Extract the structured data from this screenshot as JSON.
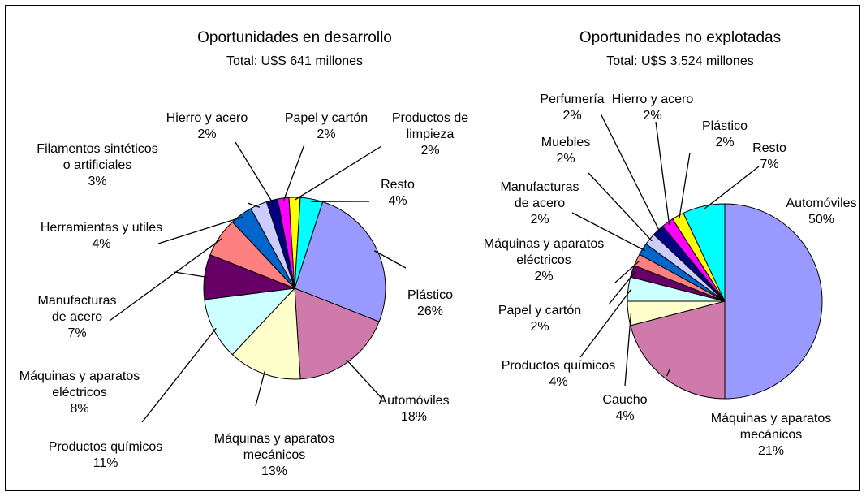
{
  "chart_data": [
    {
      "type": "pie",
      "title": "Oportunidades en desarrollo",
      "subtitle": "Total: U$S 641 millones",
      "categories": [
        "Plástico",
        "Automóviles",
        "Máquinas y aparatos\nmecánicos",
        "Productos químicos",
        "Máquinas y aparatos\neléctricos",
        "Manufacturas\nde acero",
        "Herramientas y utiles",
        "Filamentos sintéticos\no artificiales",
        "Hierro y acero",
        "Papel y cartón",
        "Productos de\nlimpieza",
        "Resto"
      ],
      "values": [
        26,
        18,
        13,
        11,
        8,
        7,
        4,
        3,
        2,
        2,
        2,
        4
      ],
      "value_labels": [
        "26%",
        "18%",
        "13%",
        "11%",
        "8%",
        "7%",
        "4%",
        "3%",
        "2%",
        "2%",
        "2%",
        "4%"
      ],
      "colors": [
        "#9999ff",
        "#d07aac",
        "#ffffcc",
        "#ccffff",
        "#660066",
        "#ff8080",
        "#0066cc",
        "#ccccff",
        "#000080",
        "#ff00ff",
        "#ffff00",
        "#00ffff"
      ]
    },
    {
      "type": "pie",
      "title": "Oportunidades no explotadas",
      "subtitle": "Total: U$S 3.524 millones",
      "categories": [
        "Automóviles",
        "Máquinas y aparatos\nmecánicos",
        "Caucho",
        "Productos químicos",
        "Papel y cartón",
        "Máquinas y aparatos\neléctricos",
        "Manufacturas\nde acero",
        "Muebles",
        "Perfumería",
        "Hierro y acero",
        "Plástico",
        "Resto"
      ],
      "values": [
        50,
        21,
        4,
        4,
        2,
        2,
        2,
        2,
        2,
        2,
        2,
        7
      ],
      "value_labels": [
        "50%",
        "21%",
        "4%",
        "4%",
        "2%",
        "2%",
        "2%",
        "2%",
        "2%",
        "2%",
        "2%",
        "7%"
      ],
      "colors": [
        "#9999ff",
        "#d07aac",
        "#ffffcc",
        "#ccffff",
        "#660066",
        "#ff8080",
        "#0066cc",
        "#ccccff",
        "#000080",
        "#ff00ff",
        "#ffff00",
        "#00ffff"
      ]
    }
  ]
}
